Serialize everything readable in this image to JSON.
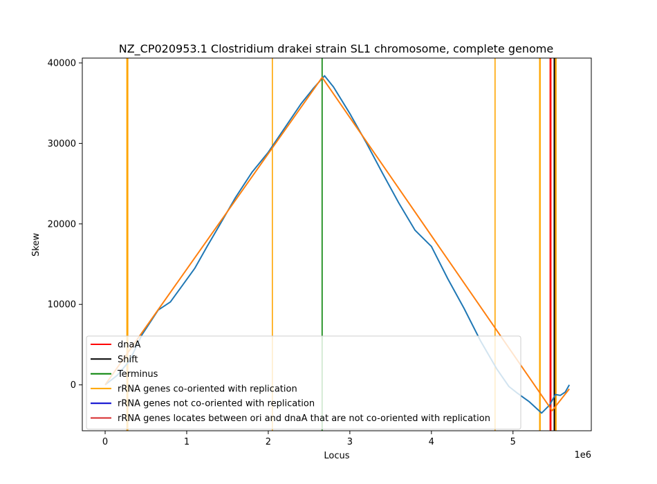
{
  "chart_data": {
    "type": "line",
    "title": "NZ_CP020953.1 Clostridium drakei strain SL1 chromosome, complete genome",
    "xlabel": "Locus",
    "ylabel": "Skew",
    "x_offset_label": "1e6",
    "xlim": [
      -280000,
      5960000
    ],
    "ylim": [
      -5700,
      40600
    ],
    "x_ticks": [
      {
        "value": 0,
        "label": "0"
      },
      {
        "value": 1000000,
        "label": "1"
      },
      {
        "value": 2000000,
        "label": "2"
      },
      {
        "value": 3000000,
        "label": "3"
      },
      {
        "value": 4000000,
        "label": "4"
      },
      {
        "value": 5000000,
        "label": "5"
      }
    ],
    "y_ticks": [
      {
        "value": 0,
        "label": "0"
      },
      {
        "value": 10000,
        "label": "10000"
      },
      {
        "value": 20000,
        "label": "20000"
      },
      {
        "value": 30000,
        "label": "30000"
      },
      {
        "value": 40000,
        "label": "40000"
      }
    ],
    "grid": false,
    "series": [
      {
        "color": "#1f77b4",
        "x": [
          0,
          150000,
          300000,
          450000,
          560000,
          650000,
          800000,
          950000,
          1100000,
          1250000,
          1400000,
          1600000,
          1800000,
          2000000,
          2200000,
          2400000,
          2550000,
          2690000,
          2800000,
          3000000,
          3200000,
          3400000,
          3600000,
          3800000,
          4000000,
          4200000,
          4400000,
          4600000,
          4800000,
          4950000,
          5050000,
          5200000,
          5350000,
          5450000,
          5520000,
          5580000,
          5640000,
          5690000
        ],
        "y": [
          0,
          1200,
          3000,
          6200,
          7900,
          9300,
          10300,
          12400,
          14500,
          17200,
          19800,
          23300,
          26400,
          28900,
          31900,
          34900,
          36800,
          38400,
          37000,
          33700,
          30100,
          26300,
          22600,
          19200,
          17200,
          13200,
          9500,
          5500,
          2000,
          -200,
          -1000,
          -2100,
          -3500,
          -2500,
          -1200,
          -1300,
          -900,
          0
        ]
      },
      {
        "color": "#ff7f0e",
        "x": [
          0,
          2660000,
          5480000,
          5690000
        ],
        "y": [
          0,
          38200,
          -3200,
          -500
        ]
      }
    ],
    "vertical_lines": [
      {
        "x": 270000,
        "color": "#ffa500",
        "width": 2.4
      },
      {
        "x": 278000,
        "color": "#ffa500",
        "width": 1.6
      },
      {
        "x": 2050000,
        "color": "#ffa500",
        "width": 1.6
      },
      {
        "x": 2660000,
        "color": "#008000",
        "width": 1.6
      },
      {
        "x": 4780000,
        "color": "#ffa500",
        "width": 1.6
      },
      {
        "x": 5330000,
        "color": "#ffa500",
        "width": 2.4
      },
      {
        "x": 5460000,
        "color": "#ff0000",
        "width": 2.8
      },
      {
        "x": 5510000,
        "color": "#000000",
        "width": 2.8
      },
      {
        "x": 5525000,
        "color": "#ffa500",
        "width": 2.4
      }
    ],
    "legend_position": "lower-left",
    "legend": [
      {
        "label": "dnaA",
        "color": "#ff0000"
      },
      {
        "label": "Shift",
        "color": "#000000"
      },
      {
        "label": "Terminus",
        "color": "#008000"
      },
      {
        "label": "rRNA genes co-oriented with replication",
        "color": "#ffa500"
      },
      {
        "label": "rRNA genes not co-oriented with replication",
        "color": "#0000cd"
      },
      {
        "label": "rRNA genes locates between ori and dnaA that are not co-oriented with replication",
        "color": "#d62728"
      }
    ]
  }
}
